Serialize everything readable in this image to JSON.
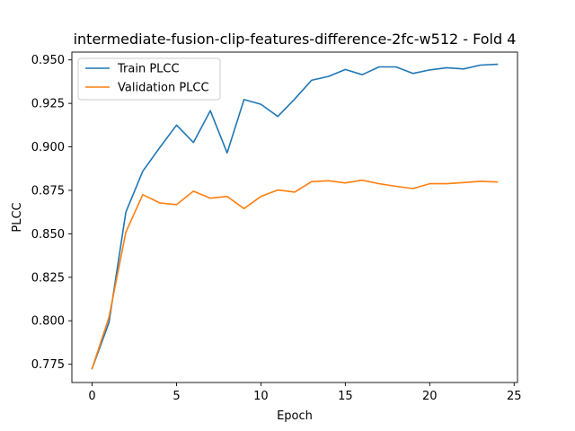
{
  "chart_data": {
    "type": "line",
    "title": "intermediate-fusion-clip-features-difference-2fc-w512 - Fold 4",
    "xlabel": "Epoch",
    "ylabel": "PLCC",
    "xlim": [
      -1.2,
      25.2
    ],
    "ylim": [
      0.7645,
      0.9545
    ],
    "xticks": [
      0,
      5,
      10,
      15,
      20,
      25
    ],
    "yticks": [
      0.775,
      0.8,
      0.825,
      0.85,
      0.875,
      0.9,
      0.925,
      0.95
    ],
    "ytick_labels": [
      "0.775",
      "0.800",
      "0.825",
      "0.850",
      "0.875",
      "0.900",
      "0.925",
      "0.950"
    ],
    "legend_position": "top-left",
    "grid": false,
    "x": [
      0,
      1,
      2,
      3,
      4,
      5,
      6,
      7,
      8,
      9,
      10,
      11,
      12,
      13,
      14,
      15,
      16,
      17,
      18,
      19,
      20,
      21,
      22,
      23,
      24
    ],
    "series": [
      {
        "name": "Train PLCC",
        "color": "#1f77b4",
        "values": [
          0.7725,
          0.799,
          0.8625,
          0.886,
          0.8995,
          0.9125,
          0.9025,
          0.9208,
          0.8965,
          0.9272,
          0.9245,
          0.9175,
          0.9275,
          0.9383,
          0.9405,
          0.9445,
          0.9415,
          0.946,
          0.946,
          0.9422,
          0.9442,
          0.9455,
          0.9448,
          0.947,
          0.9475
        ]
      },
      {
        "name": "Validation PLCC",
        "color": "#ff7f0e",
        "values": [
          0.7725,
          0.802,
          0.851,
          0.8725,
          0.8678,
          0.8668,
          0.8745,
          0.8705,
          0.8715,
          0.8645,
          0.8715,
          0.8752,
          0.874,
          0.88,
          0.8805,
          0.8793,
          0.8808,
          0.8788,
          0.8773,
          0.876,
          0.8788,
          0.8788,
          0.8795,
          0.8802,
          0.8798
        ]
      }
    ]
  }
}
